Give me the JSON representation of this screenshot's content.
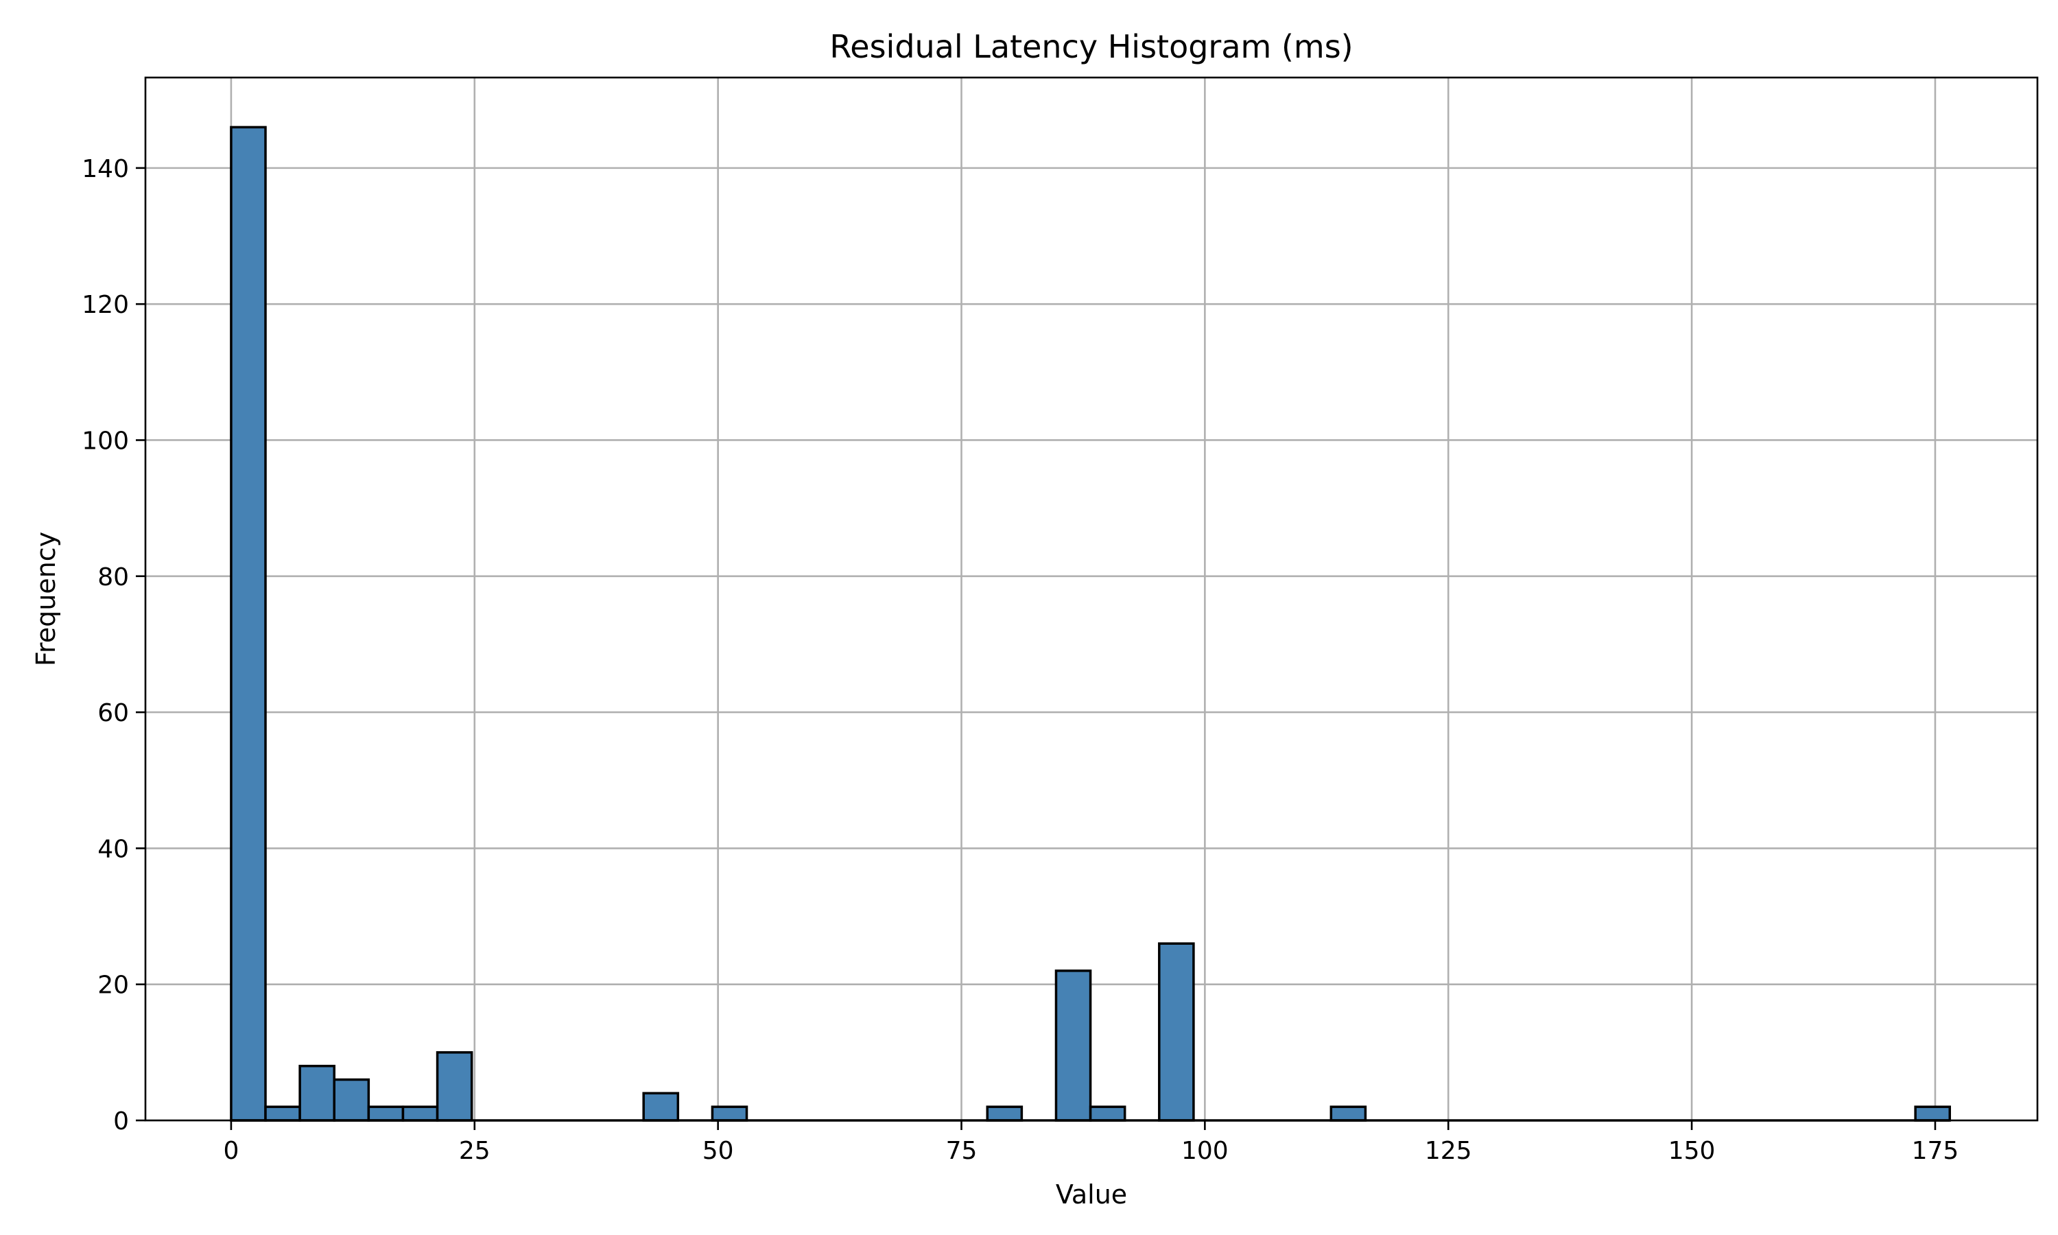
{
  "chart_data": {
    "type": "bar",
    "subtype": "histogram",
    "title": "Residual Latency Histogram (ms)",
    "xlabel": "Value",
    "ylabel": "Frequency",
    "xlim": [
      -8.8,
      185.5
    ],
    "ylim": [
      0,
      153.3
    ],
    "xticks": [
      0,
      25,
      50,
      75,
      100,
      125,
      150,
      175
    ],
    "yticks": [
      0,
      20,
      40,
      60,
      80,
      100,
      120,
      140
    ],
    "grid": true,
    "bar_color": "#4682b4",
    "edge_color": "#000000",
    "bin_width": 3.53,
    "bins": [
      {
        "start": 0.0,
        "end": 3.53,
        "count": 146
      },
      {
        "start": 3.53,
        "end": 7.06,
        "count": 2
      },
      {
        "start": 7.06,
        "end": 10.59,
        "count": 8
      },
      {
        "start": 10.59,
        "end": 14.12,
        "count": 6
      },
      {
        "start": 14.12,
        "end": 17.65,
        "count": 2
      },
      {
        "start": 17.65,
        "end": 21.18,
        "count": 2
      },
      {
        "start": 21.18,
        "end": 24.71,
        "count": 10
      },
      {
        "start": 42.36,
        "end": 45.89,
        "count": 4
      },
      {
        "start": 49.42,
        "end": 52.95,
        "count": 2
      },
      {
        "start": 77.66,
        "end": 81.19,
        "count": 2
      },
      {
        "start": 84.72,
        "end": 88.25,
        "count": 22
      },
      {
        "start": 88.25,
        "end": 91.78,
        "count": 2
      },
      {
        "start": 95.31,
        "end": 98.84,
        "count": 26
      },
      {
        "start": 112.96,
        "end": 116.49,
        "count": 2
      },
      {
        "start": 172.97,
        "end": 176.5,
        "count": 2
      }
    ]
  }
}
